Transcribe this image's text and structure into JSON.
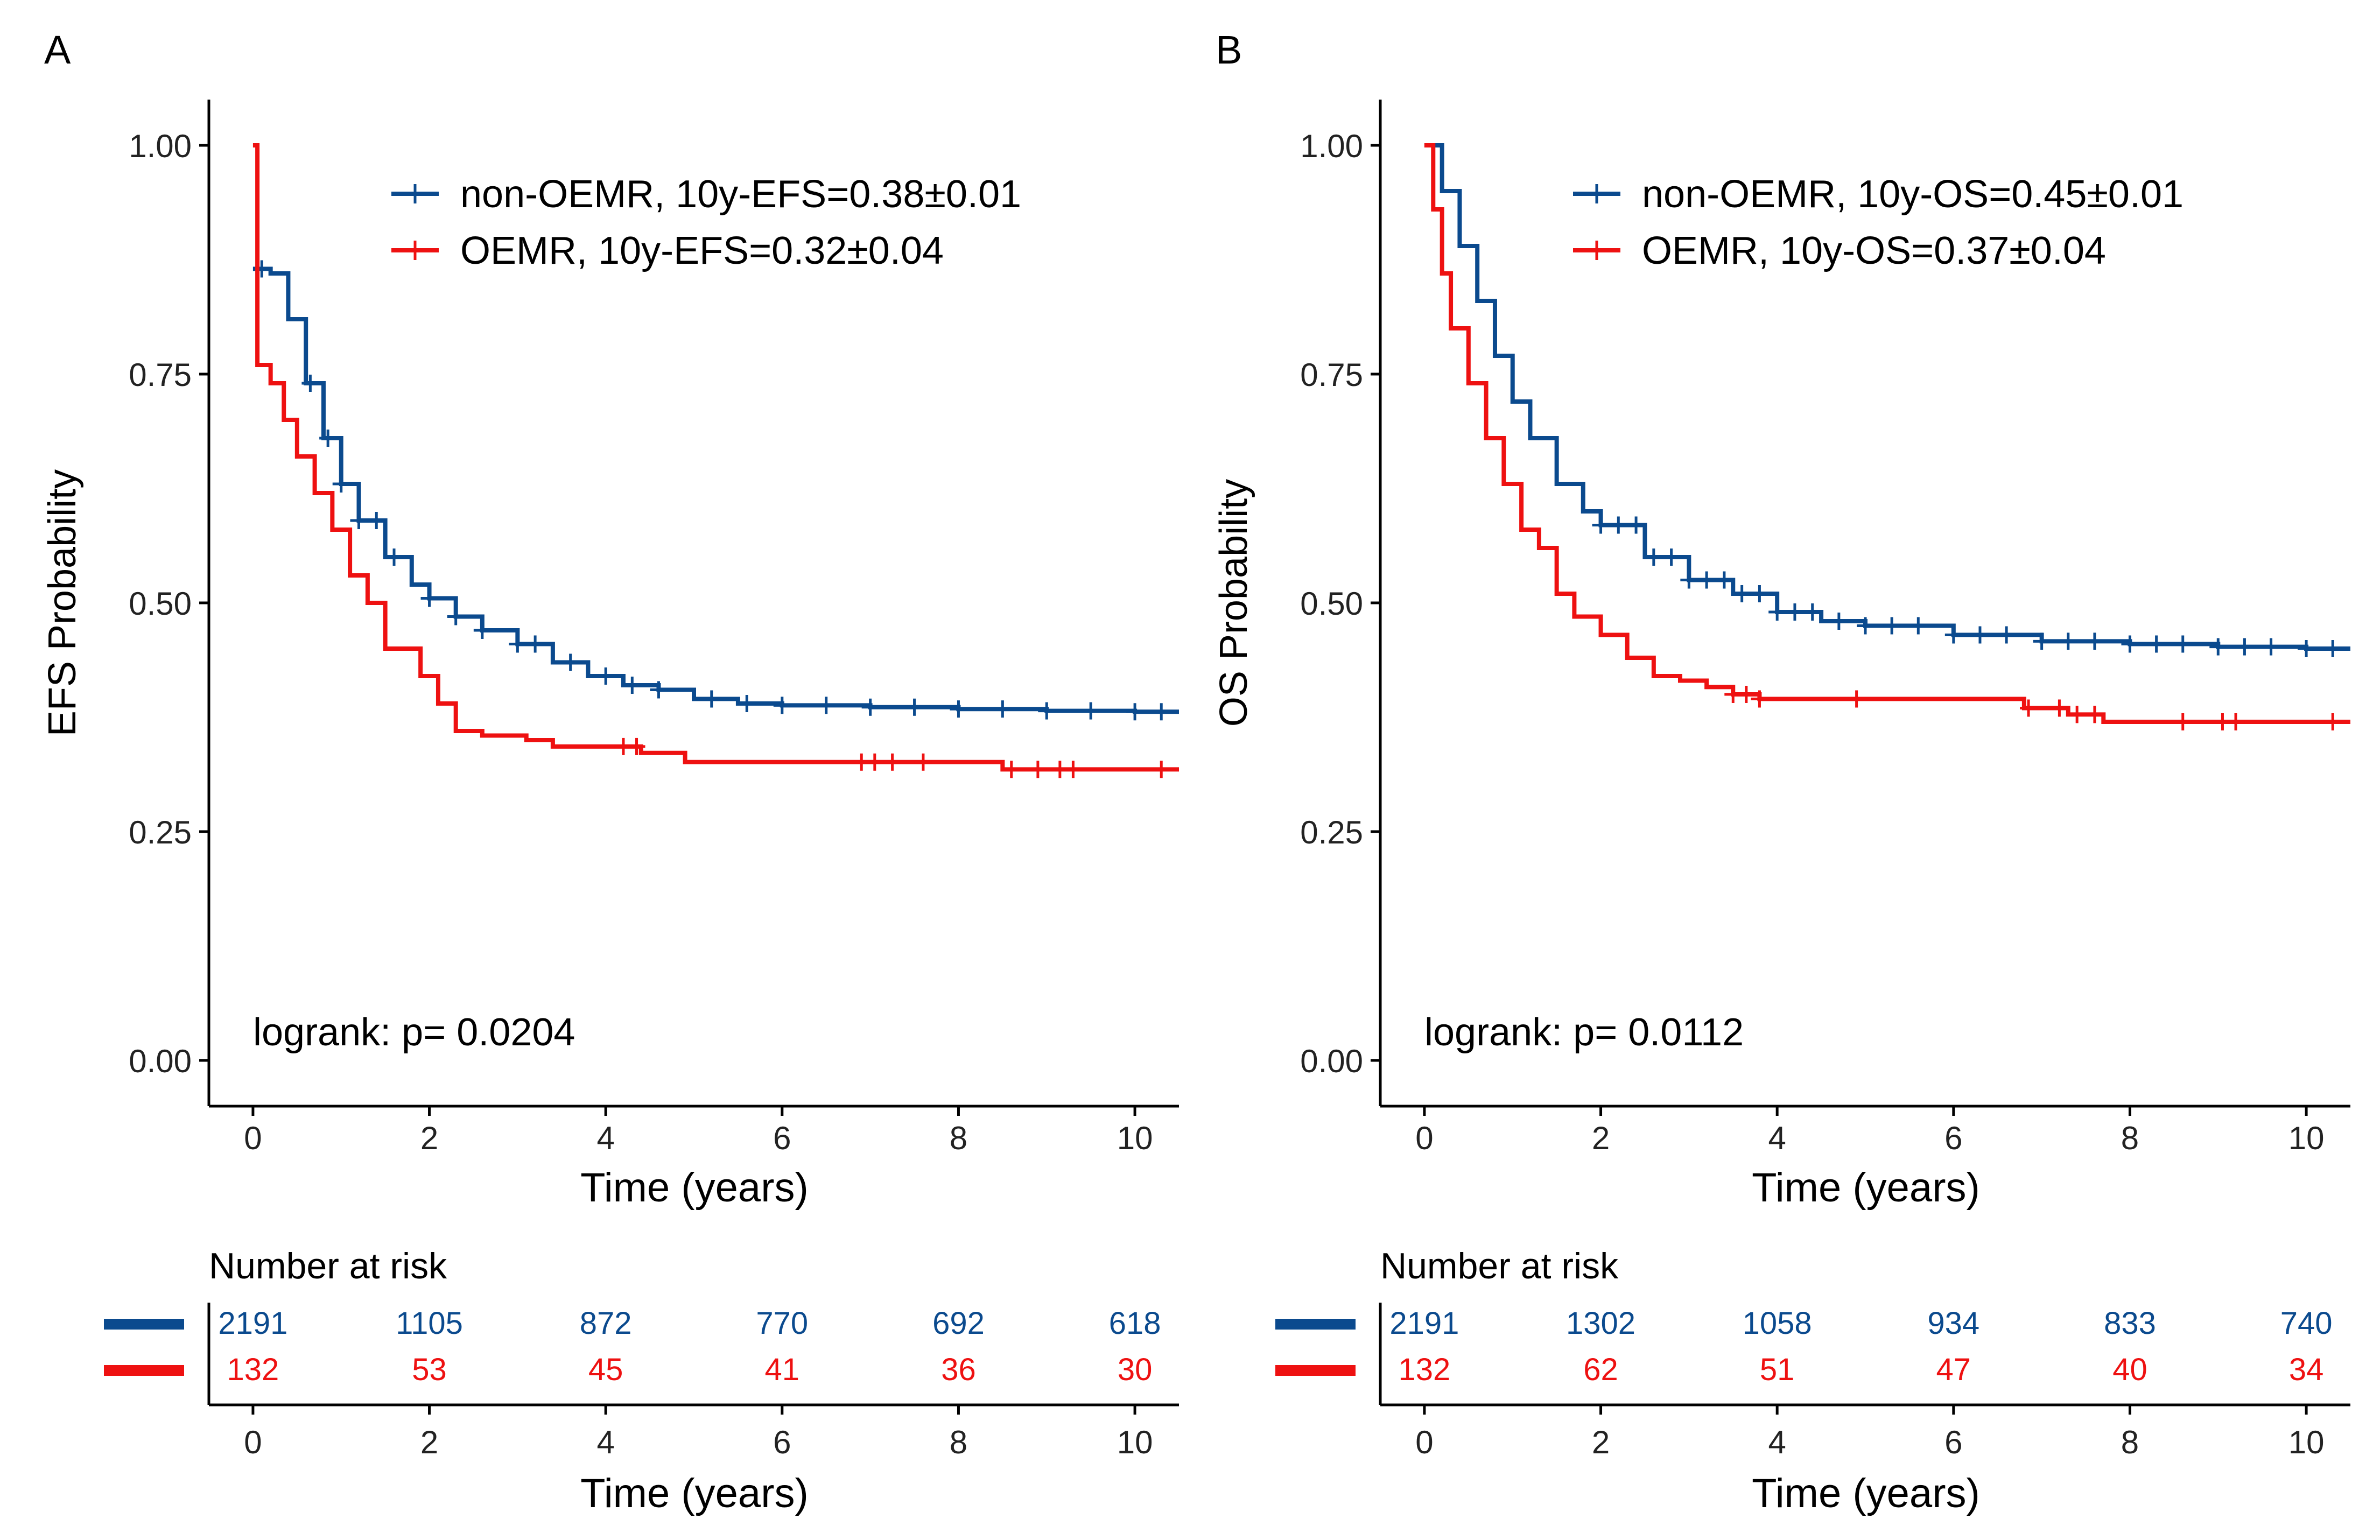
{
  "colors": {
    "non_oemr": "#0b4a8e",
    "oemr": "#ee1111",
    "axis": "#000000"
  },
  "chart_data": [
    {
      "type": "line",
      "subtype": "kaplan-meier",
      "panel_label": "A",
      "title": "",
      "xlabel": "Time (years)",
      "ylabel": "EFS Probability",
      "xlim": [
        -0.5,
        10.5
      ],
      "ylim": [
        -0.05,
        1.05
      ],
      "x_ticks": [
        0,
        2,
        4,
        6,
        8,
        10
      ],
      "x_tick_labels": [
        "0",
        "2",
        "4",
        "6",
        "8",
        "10"
      ],
      "y_ticks": [
        0,
        0.25,
        0.5,
        0.75,
        1.0
      ],
      "y_tick_labels": [
        "0.00",
        "0.25",
        "0.50",
        "0.75",
        "1.00"
      ],
      "grid": false,
      "legend_position": "top-right",
      "annotation": "logrank: p= 0.0204",
      "series": [
        {
          "name": "non-OEMR, 10y-EFS=0.38±0.01",
          "color_key": "non_oemr",
          "x": [
            0,
            0.2,
            0.4,
            0.6,
            0.8,
            1.0,
            1.2,
            1.5,
            1.8,
            2.0,
            2.3,
            2.6,
            3.0,
            3.4,
            3.8,
            4.2,
            4.6,
            5.0,
            5.5,
            6.0,
            7.0,
            8.0,
            9.0,
            10.0,
            10.5
          ],
          "y": [
            0.865,
            0.86,
            0.81,
            0.74,
            0.68,
            0.63,
            0.59,
            0.55,
            0.52,
            0.505,
            0.485,
            0.47,
            0.455,
            0.435,
            0.42,
            0.41,
            0.405,
            0.395,
            0.39,
            0.388,
            0.386,
            0.384,
            0.382,
            0.381,
            0.381
          ],
          "censor_x": [
            0.1,
            0.65,
            0.85,
            1.0,
            1.2,
            1.4,
            1.6,
            2.0,
            2.3,
            2.6,
            3.0,
            3.2,
            3.6,
            4.0,
            4.3,
            4.6,
            5.2,
            5.6,
            6.0,
            6.5,
            7.0,
            7.5,
            8.0,
            8.5,
            9.0,
            9.5,
            10.0,
            10.3
          ]
        },
        {
          "name": "OEMR, 10y-EFS=0.32±0.04",
          "color_key": "oemr",
          "x": [
            0,
            0.05,
            0.2,
            0.35,
            0.5,
            0.7,
            0.9,
            1.1,
            1.3,
            1.5,
            1.9,
            2.1,
            2.3,
            2.6,
            3.0,
            3.1,
            3.4,
            4.4,
            4.9,
            5.5,
            6.5,
            7.5,
            8.0,
            8.5,
            9.2,
            10.5
          ],
          "y": [
            1.0,
            0.76,
            0.74,
            0.7,
            0.66,
            0.62,
            0.58,
            0.53,
            0.5,
            0.45,
            0.42,
            0.39,
            0.36,
            0.355,
            0.355,
            0.35,
            0.343,
            0.336,
            0.326,
            0.326,
            0.326,
            0.326,
            0.326,
            0.318,
            0.318,
            0.318
          ],
          "censor_x": [
            4.2,
            4.35,
            6.9,
            7.05,
            7.25,
            7.6,
            8.6,
            8.9,
            9.15,
            9.3,
            10.3
          ]
        }
      ],
      "risk_table": {
        "title": "Number at risk",
        "xlabel": "Time (years)",
        "times": [
          0,
          2,
          4,
          6,
          8,
          10
        ],
        "rows": [
          {
            "color_key": "non_oemr",
            "values": [
              "2191",
              "1105",
              "872",
              "770",
              "692",
              "618"
            ]
          },
          {
            "color_key": "oemr",
            "values": [
              "132",
              "53",
              "45",
              "41",
              "36",
              "30"
            ]
          }
        ]
      }
    },
    {
      "type": "line",
      "subtype": "kaplan-meier",
      "panel_label": "B",
      "title": "",
      "xlabel": "Time (years)",
      "ylabel": "OS Probability",
      "xlim": [
        -0.5,
        10.5
      ],
      "ylim": [
        -0.05,
        1.05
      ],
      "x_ticks": [
        0,
        2,
        4,
        6,
        8,
        10
      ],
      "x_tick_labels": [
        "0",
        "2",
        "4",
        "6",
        "8",
        "10"
      ],
      "y_ticks": [
        0,
        0.25,
        0.5,
        0.75,
        1.0
      ],
      "y_tick_labels": [
        "0.00",
        "0.25",
        "0.50",
        "0.75",
        "1.00"
      ],
      "grid": false,
      "legend_position": "top-right",
      "annotation": "logrank: p= 0.0112",
      "series": [
        {
          "name": "non-OEMR, 10y-OS=0.45±0.01",
          "color_key": "non_oemr",
          "x": [
            0,
            0.2,
            0.4,
            0.6,
            0.8,
            1.0,
            1.2,
            1.5,
            1.8,
            2.0,
            2.5,
            3.0,
            3.5,
            4.0,
            4.5,
            5.0,
            6.0,
            7.0,
            8.0,
            9.0,
            10.0,
            10.5
          ],
          "y": [
            1.0,
            0.95,
            0.89,
            0.83,
            0.77,
            0.72,
            0.68,
            0.63,
            0.6,
            0.585,
            0.55,
            0.525,
            0.51,
            0.49,
            0.48,
            0.475,
            0.465,
            0.458,
            0.455,
            0.452,
            0.45,
            0.45
          ],
          "censor_x": [
            2.0,
            2.2,
            2.4,
            2.6,
            2.8,
            3.0,
            3.2,
            3.4,
            3.6,
            3.8,
            4.0,
            4.2,
            4.4,
            4.7,
            5.0,
            5.3,
            5.6,
            6.0,
            6.3,
            6.6,
            7.0,
            7.3,
            7.6,
            8.0,
            8.3,
            8.6,
            9.0,
            9.3,
            9.6,
            10.0,
            10.3
          ]
        },
        {
          "name": "OEMR, 10y-OS=0.37±0.04",
          "color_key": "oemr",
          "x": [
            0,
            0.1,
            0.2,
            0.3,
            0.5,
            0.7,
            0.9,
            1.1,
            1.3,
            1.5,
            1.7,
            2.0,
            2.3,
            2.6,
            2.9,
            3.2,
            3.5,
            3.8,
            5.0,
            6.8,
            7.3,
            7.7,
            10.5
          ],
          "y": [
            1.0,
            0.93,
            0.86,
            0.8,
            0.74,
            0.68,
            0.63,
            0.58,
            0.56,
            0.51,
            0.485,
            0.465,
            0.44,
            0.42,
            0.415,
            0.408,
            0.4,
            0.395,
            0.395,
            0.385,
            0.378,
            0.37,
            0.37
          ],
          "censor_x": [
            3.5,
            3.65,
            3.8,
            4.9,
            6.85,
            7.2,
            7.4,
            7.6,
            8.6,
            9.05,
            9.2,
            10.3
          ]
        }
      ],
      "risk_table": {
        "title": "Number at risk",
        "xlabel": "Time (years)",
        "times": [
          0,
          2,
          4,
          6,
          8,
          10
        ],
        "rows": [
          {
            "color_key": "non_oemr",
            "values": [
              "2191",
              "1302",
              "1058",
              "934",
              "833",
              "740"
            ]
          },
          {
            "color_key": "oemr",
            "values": [
              "132",
              "62",
              "51",
              "47",
              "40",
              "34"
            ]
          }
        ]
      }
    }
  ]
}
